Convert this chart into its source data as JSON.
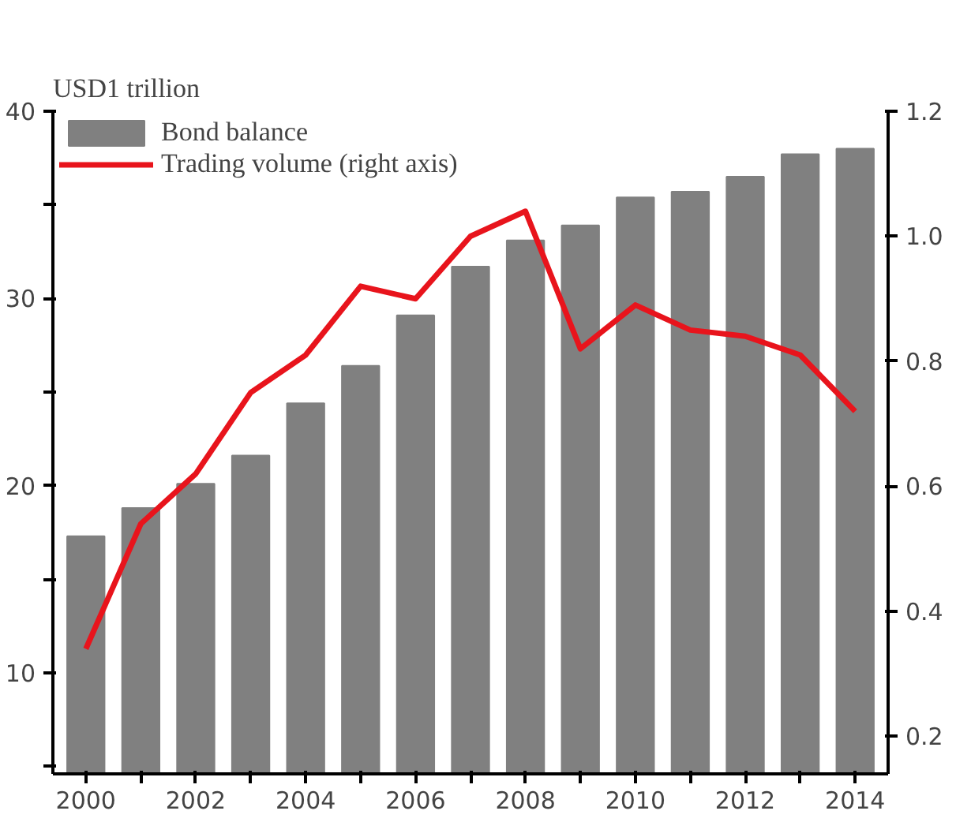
{
  "chart_data": {
    "type": "bar",
    "title": "USD1 trillion",
    "categories": [
      "2000",
      null,
      "2002",
      null,
      "2004",
      null,
      "2006",
      null,
      "2008",
      null,
      "2010",
      null,
      "2012",
      null,
      "2014"
    ],
    "series": [
      {
        "name": "Bond balance",
        "color": "#808080",
        "values": [
          17.3,
          18.8,
          20.1,
          21.6,
          24.4,
          26.4,
          29.1,
          31.7,
          33.1,
          33.9,
          35.4,
          35.7,
          36.5,
          37.7,
          38.0
        ]
      },
      {
        "name": "Trading volume (right axis)",
        "type": "line",
        "axis": "y2",
        "color": "#e8141c",
        "values": [
          0.34,
          0.54,
          0.62,
          0.75,
          0.81,
          0.92,
          0.9,
          1.0,
          1.04,
          0.82,
          0.89,
          0.85,
          0.84,
          0.81,
          0.72
        ]
      }
    ],
    "ylim": [
      4.6,
      40
    ],
    "yticks": [
      {
        "value": 5,
        "label": null
      },
      10,
      {
        "value": 15,
        "label": null
      },
      20,
      {
        "value": 25,
        "label": null
      },
      30,
      {
        "value": 35,
        "label": null
      },
      40
    ],
    "y2lim": [
      0.14,
      1.2
    ],
    "y2ticks": [
      0.2,
      0.4,
      0.6,
      0.8,
      {
        "value": 1.0,
        "label": "1.0"
      },
      1.2
    ],
    "grid": false,
    "legend": "top left",
    "marker": "none",
    "line_style": "solid"
  }
}
